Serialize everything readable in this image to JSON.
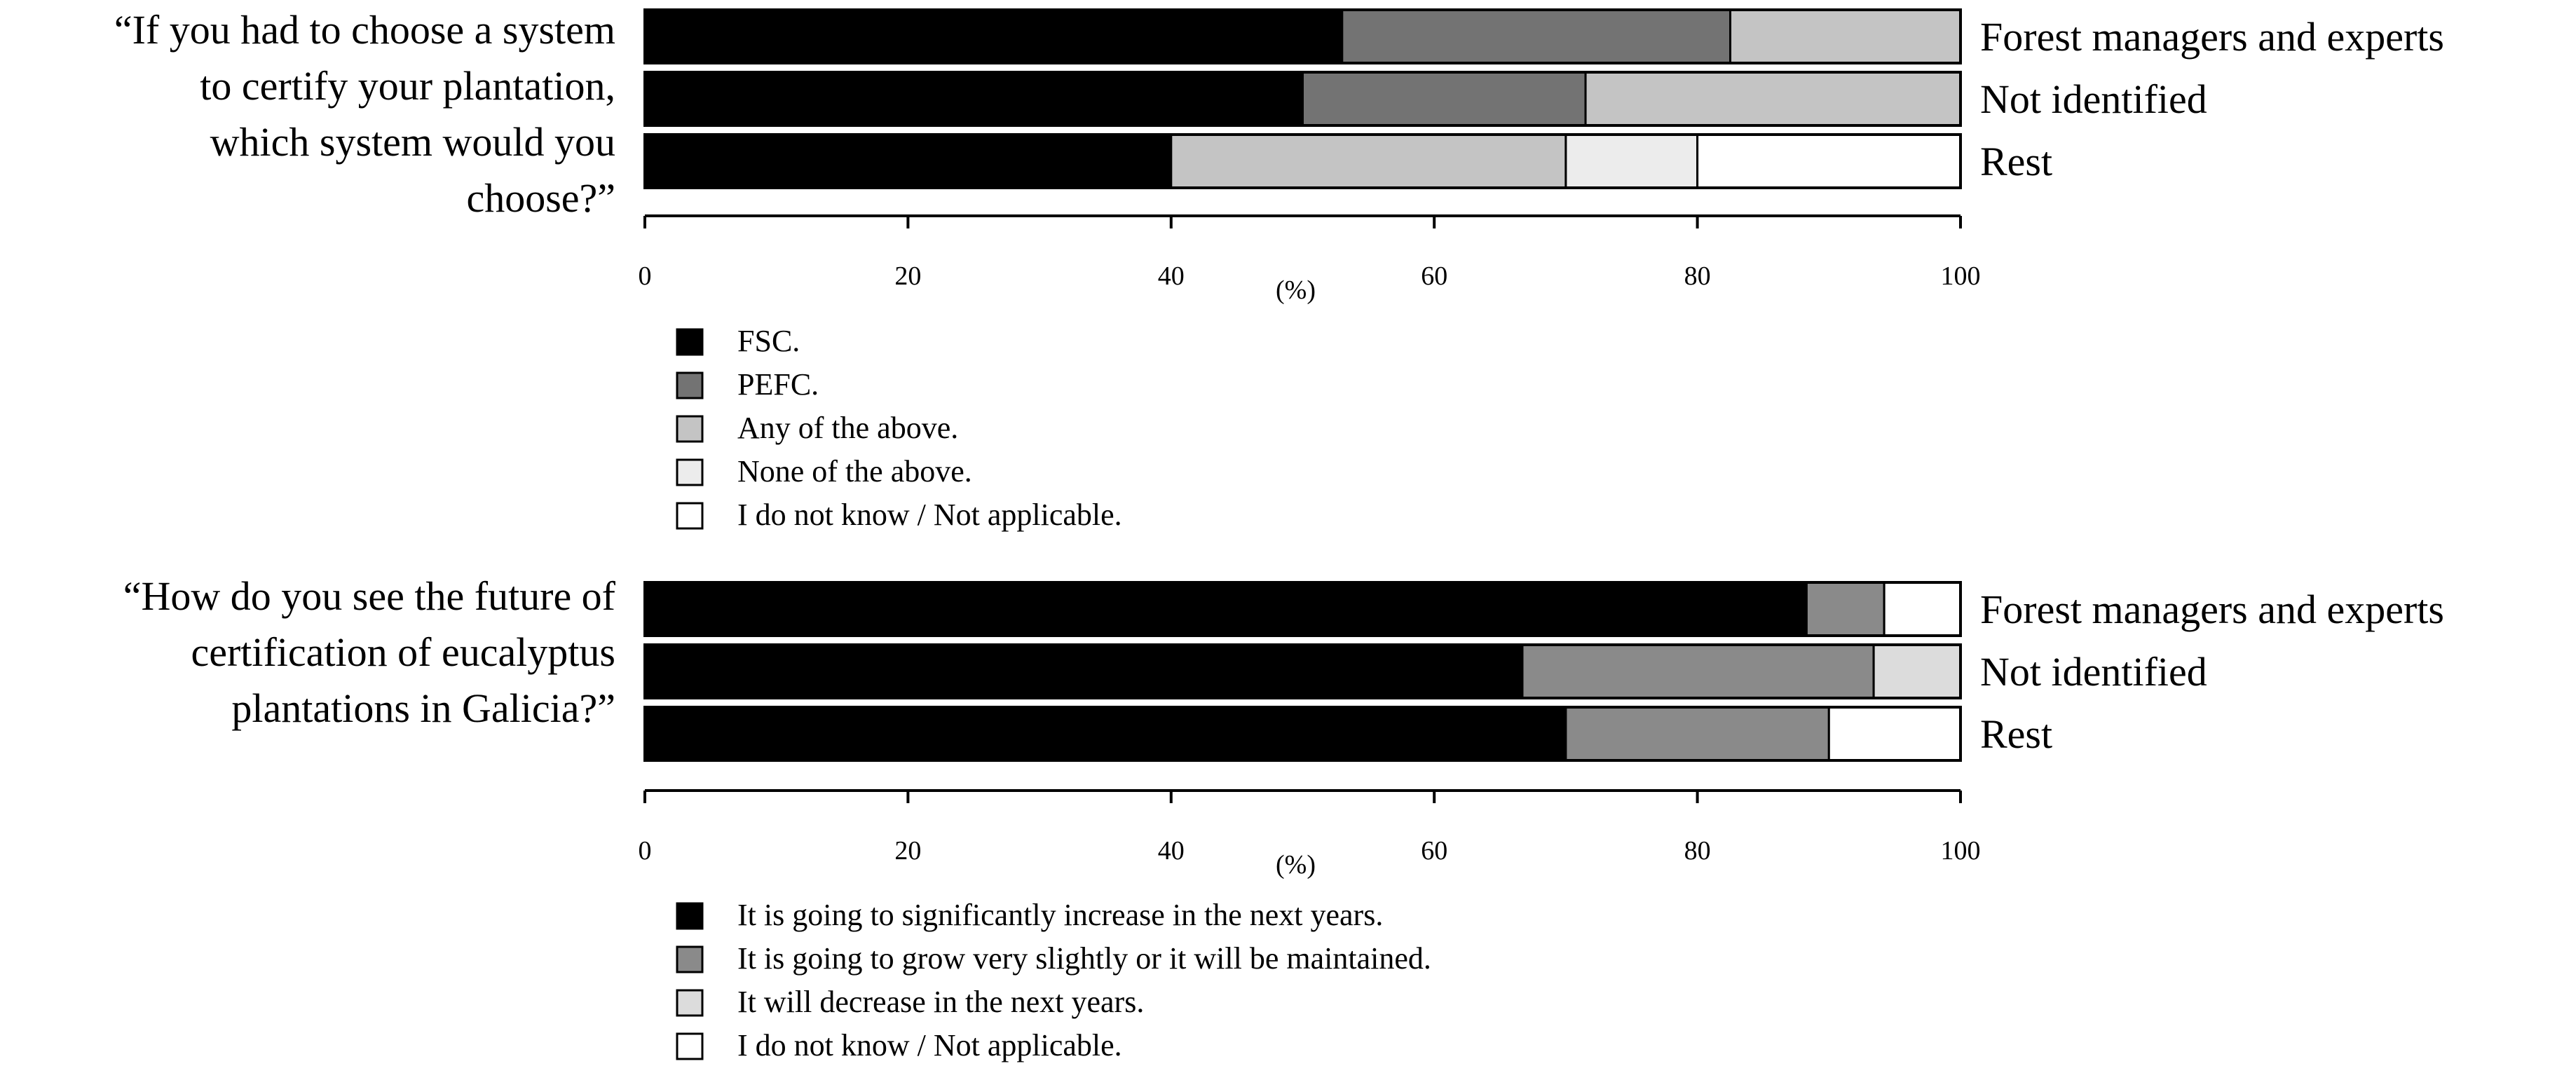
{
  "chart_data": [
    {
      "type": "bar",
      "orientation": "horizontal",
      "stacked": true,
      "question": [
        "“If you had to choose a system",
        "to certify your plantation,",
        "which system would you",
        "choose?”"
      ],
      "categories": [
        "Forest managers and experts",
        "Not identified",
        "Rest"
      ],
      "series": [
        {
          "name": "FSC.",
          "color": "#000000",
          "values": [
            53,
            50,
            40
          ]
        },
        {
          "name": "PEFC.",
          "color": "#737373",
          "values": [
            29.5,
            21.5,
            0
          ]
        },
        {
          "name": "Any of the above.",
          "color": "#c4c4c4",
          "values": [
            17.5,
            28.5,
            30
          ]
        },
        {
          "name": "None of the above.",
          "color": "#ececec",
          "values": [
            0,
            0,
            10
          ]
        },
        {
          "name": "I do not know / Not applicable.",
          "color": "#ffffff",
          "values": [
            0,
            0,
            20
          ]
        }
      ],
      "xlim": [
        0,
        100
      ],
      "xticks": [
        "0",
        "20",
        "40",
        "60",
        "80",
        "100"
      ],
      "xlabel": "(%)",
      "legend_position": "below"
    },
    {
      "type": "bar",
      "orientation": "horizontal",
      "stacked": true,
      "question": [
        "“How do you see the future of",
        "certification of eucalyptus",
        "plantations in Galicia?”"
      ],
      "categories": [
        "Forest managers and experts",
        "Not identified",
        "Rest"
      ],
      "series": [
        {
          "name": "It is going to significantly increase in the next years.",
          "color": "#000000",
          "values": [
            88.3,
            66.7,
            70
          ]
        },
        {
          "name": "It is going to grow very slightly or it will be maintained.",
          "color": "#8a8a8a",
          "values": [
            5.9,
            26.7,
            20
          ]
        },
        {
          "name": "It will decrease in the next years.",
          "color": "#dcdcdc",
          "values": [
            0,
            6.6,
            0
          ]
        },
        {
          "name": "I do not know / Not applicable.",
          "color": "#ffffff",
          "values": [
            5.8,
            0,
            10
          ]
        }
      ],
      "xlim": [
        0,
        100
      ],
      "xticks": [
        "0",
        "20",
        "40",
        "60",
        "80",
        "100"
      ],
      "xlabel": "(%)",
      "legend_position": "below"
    }
  ]
}
